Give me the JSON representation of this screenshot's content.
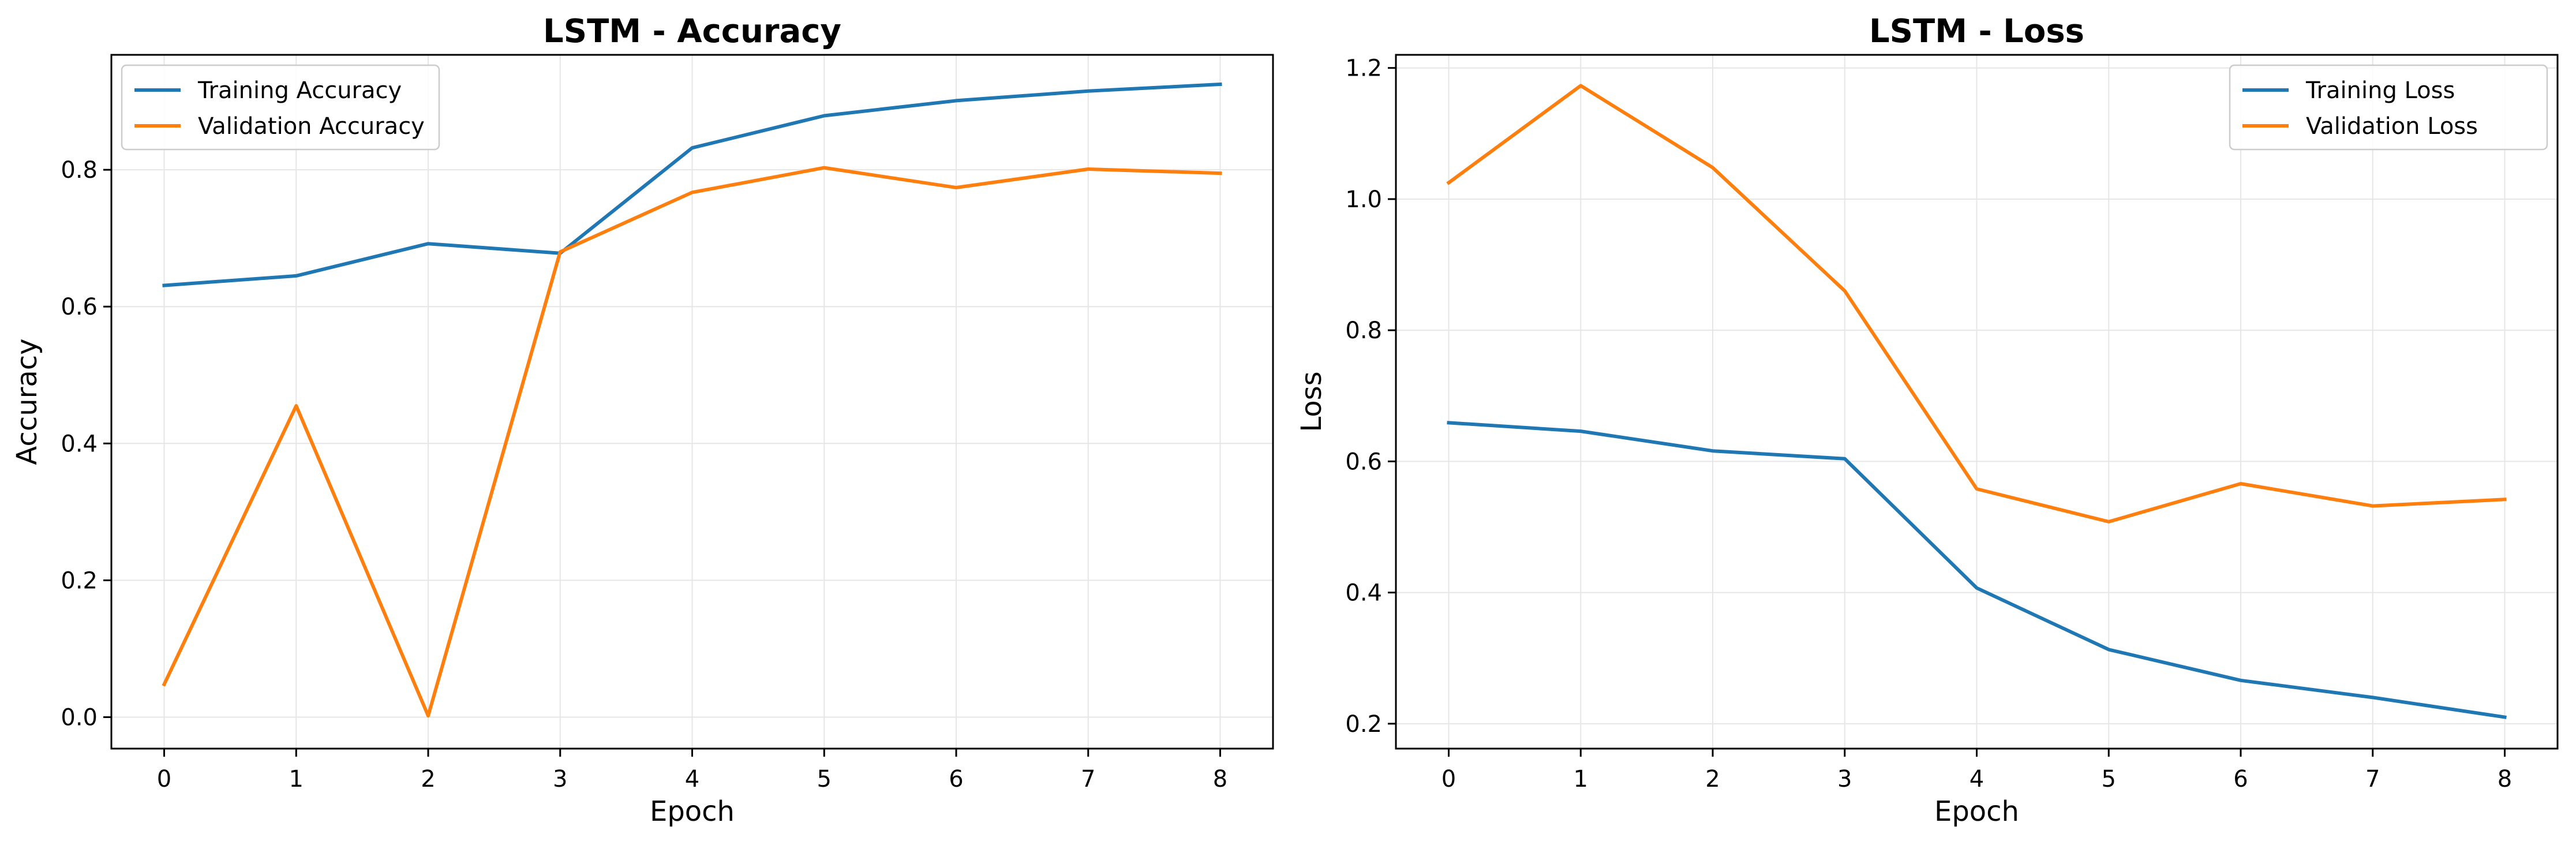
{
  "chart_data": [
    {
      "type": "line",
      "title": "LSTM - Accuracy",
      "xlabel": "Epoch",
      "ylabel": "Accuracy",
      "x": [
        0,
        1,
        2,
        3,
        4,
        5,
        6,
        7,
        8
      ],
      "xlim": [
        -0.4,
        8.4
      ],
      "ylim": [
        -0.046,
        0.968
      ],
      "x_ticks": [
        "0",
        "1",
        "2",
        "3",
        "4",
        "5",
        "6",
        "7",
        "8"
      ],
      "y_ticks": [
        "0.0",
        "0.2",
        "0.4",
        "0.6",
        "0.8"
      ],
      "grid": true,
      "legend_position": "top-left",
      "series": [
        {
          "name": "Training Accuracy",
          "color": "#1f77b4",
          "values": [
            0.631,
            0.645,
            0.692,
            0.678,
            0.832,
            0.879,
            0.901,
            0.915,
            0.925
          ]
        },
        {
          "name": "Validation Accuracy",
          "color": "#ff7f0e",
          "values": [
            0.048,
            0.455,
            0.002,
            0.68,
            0.767,
            0.803,
            0.774,
            0.801,
            0.795
          ]
        }
      ]
    },
    {
      "type": "line",
      "title": "LSTM - Loss",
      "xlabel": "Epoch",
      "ylabel": "Loss",
      "x": [
        0,
        1,
        2,
        3,
        4,
        5,
        6,
        7,
        8
      ],
      "xlim": [
        -0.4,
        8.4
      ],
      "ylim": [
        0.162,
        1.22
      ],
      "x_ticks": [
        "0",
        "1",
        "2",
        "3",
        "4",
        "5",
        "6",
        "7",
        "8"
      ],
      "y_ticks": [
        "0.2",
        "0.4",
        "0.6",
        "0.8",
        "1.0",
        "1.2"
      ],
      "grid": true,
      "legend_position": "top-right",
      "series": [
        {
          "name": "Training Loss",
          "color": "#1f77b4",
          "values": [
            0.659,
            0.646,
            0.616,
            0.604,
            0.407,
            0.313,
            0.266,
            0.24,
            0.21
          ]
        },
        {
          "name": "Validation Loss",
          "color": "#ff7f0e",
          "values": [
            1.025,
            1.173,
            1.048,
            0.86,
            0.558,
            0.508,
            0.566,
            0.532,
            0.542
          ]
        }
      ]
    }
  ]
}
